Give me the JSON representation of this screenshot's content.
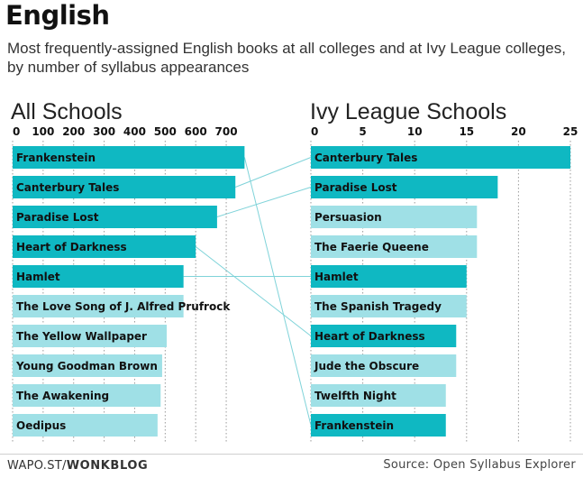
{
  "title": "English",
  "subtitle": "Most frequently-assigned English books at all colleges and at Ivy League colleges, by number of syllabus appearances",
  "colors": {
    "highlight": "#0fb8c2",
    "normal": "#9fe0e6",
    "connector": "#7fd3d9"
  },
  "footer": {
    "brand_prefix": "WAPO.ST/",
    "brand_name": "WONKBLOG",
    "source": "Source: Open Syllabus Explorer"
  },
  "chart_data": [
    {
      "type": "bar",
      "orientation": "horizontal",
      "title": "All Schools",
      "xlim": [
        0,
        750
      ],
      "xticks": [
        0,
        100,
        200,
        300,
        400,
        500,
        600,
        700
      ],
      "categories": [
        "Frankenstein",
        "Canterbury Tales",
        "Paradise Lost",
        "Heart of Darkness",
        "Hamlet",
        "The Love Song of J. Alfred Prufrock",
        "The Yellow Wallpaper",
        "Young Goodman Brown",
        "The Awakening",
        "Oedipus"
      ],
      "values": [
        760,
        730,
        670,
        600,
        560,
        560,
        505,
        490,
        485,
        475
      ],
      "highlighted": [
        true,
        true,
        true,
        true,
        true,
        false,
        false,
        false,
        false,
        false
      ]
    },
    {
      "type": "bar",
      "orientation": "horizontal",
      "title": "Ivy League Schools",
      "xlim": [
        0,
        25
      ],
      "xticks": [
        0,
        5,
        10,
        15,
        20,
        25
      ],
      "categories": [
        "Canterbury Tales",
        "Paradise Lost",
        "Persuasion",
        "The Faerie Queene",
        "Hamlet",
        "The Spanish Tragedy",
        "Heart of Darkness",
        "Jude the Obscure",
        "Twelfth Night",
        "Frankenstein"
      ],
      "values": [
        25,
        18,
        16,
        16,
        15,
        15,
        14,
        14,
        13,
        13
      ],
      "highlighted": [
        true,
        true,
        false,
        false,
        true,
        false,
        true,
        false,
        false,
        true
      ]
    }
  ]
}
